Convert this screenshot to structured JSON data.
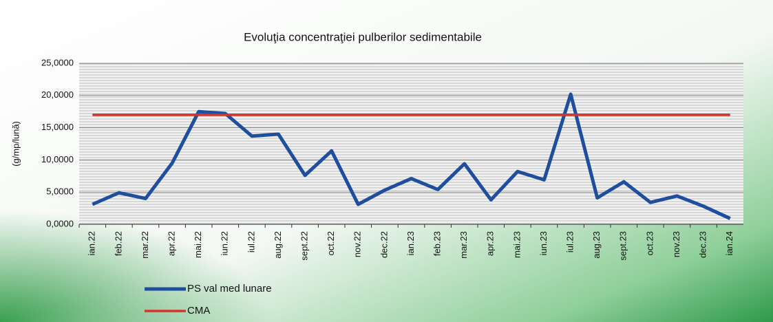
{
  "chart_data": {
    "type": "line",
    "title": "Evoluţia concentraţiei pulberilor sedimentabile",
    "y_label": "(g/mp/lună)",
    "categories": [
      "ian.22",
      "feb.22",
      "mar.22",
      "apr.22",
      "mai.22",
      "iun.22",
      "iul.22",
      "aug.22",
      "sept.22",
      "oct.22",
      "nov.22",
      "dec.22",
      "ian.23",
      "feb.23",
      "mar.23",
      "apr.23",
      "mai.23",
      "iun.23",
      "iul.23",
      "aug.23",
      "sept.23",
      "oct.23",
      "nov.23",
      "dec.23",
      "ian.24"
    ],
    "series": [
      {
        "name": "PS val med lunare",
        "color": "#1f4e9e",
        "values": [
          3.1,
          4.9,
          4.0,
          9.5,
          17.5,
          17.2,
          13.7,
          14.0,
          7.6,
          11.4,
          3.1,
          5.3,
          7.1,
          5.4,
          9.4,
          3.8,
          8.2,
          6.9,
          20.2,
          4.1,
          6.6,
          3.4,
          4.4,
          2.8,
          0.9
        ]
      },
      {
        "name": "CMA",
        "color": "#d6332a",
        "values": [
          17,
          17,
          17,
          17,
          17,
          17,
          17,
          17,
          17,
          17,
          17,
          17,
          17,
          17,
          17,
          17,
          17,
          17,
          17,
          17,
          17,
          17,
          17,
          17,
          17
        ]
      }
    ],
    "ylim": [
      0,
      25
    ],
    "yticks": [
      {
        "value": 0,
        "label": "0,0000"
      },
      {
        "value": 5,
        "label": "5,0000"
      },
      {
        "value": 10,
        "label": "10,0000"
      },
      {
        "value": 15,
        "label": "15,0000"
      },
      {
        "value": 20,
        "label": "20,0000"
      },
      {
        "value": 25,
        "label": "25,0000"
      }
    ],
    "grid": true,
    "legend": "bottom-left"
  }
}
